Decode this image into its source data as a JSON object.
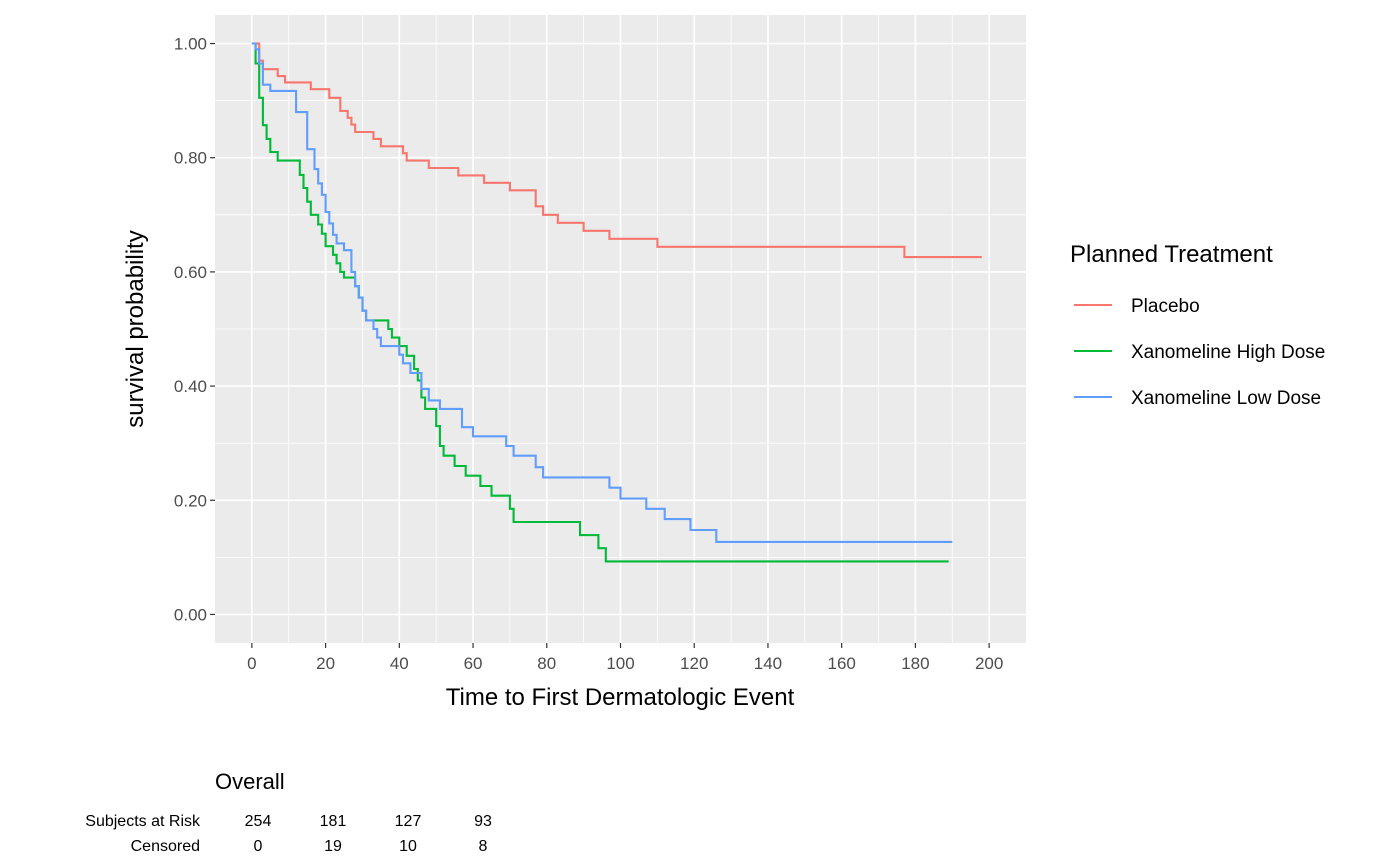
{
  "chart_data": {
    "type": "line",
    "xlabel": "Time to First Dermatologic Event",
    "ylabel": "survival probability",
    "xlim": [
      -10,
      210
    ],
    "ylim": [
      -0.05,
      1.05
    ],
    "x_ticks": [
      0,
      20,
      40,
      60,
      80,
      100,
      120,
      140,
      160,
      180,
      200
    ],
    "x_tick_labels": [
      "0",
      "20",
      "40",
      "60",
      "80",
      "100",
      "120",
      "140",
      "160",
      "180",
      "200"
    ],
    "y_ticks": [
      0,
      0.2,
      0.4,
      0.6,
      0.8,
      1.0
    ],
    "y_tick_labels": [
      "0.00",
      "0.20",
      "0.40",
      "0.60",
      "0.80",
      "1.00"
    ],
    "grid": true,
    "step": true,
    "legend": {
      "title": "Planned Treatment",
      "position": "right"
    },
    "series": [
      {
        "name": "Placebo",
        "color": "#F8766D",
        "points": [
          [
            0,
            1.0
          ],
          [
            2,
            0.97
          ],
          [
            3,
            0.955
          ],
          [
            7,
            0.943
          ],
          [
            9,
            0.932
          ],
          [
            16,
            0.92
          ],
          [
            21,
            0.905
          ],
          [
            24,
            0.882
          ],
          [
            26,
            0.87
          ],
          [
            27,
            0.858
          ],
          [
            28,
            0.845
          ],
          [
            33,
            0.833
          ],
          [
            35,
            0.82
          ],
          [
            41,
            0.808
          ],
          [
            42,
            0.795
          ],
          [
            48,
            0.782
          ],
          [
            56,
            0.769
          ],
          [
            63,
            0.756
          ],
          [
            70,
            0.743
          ],
          [
            77,
            0.715
          ],
          [
            79,
            0.7
          ],
          [
            83,
            0.686
          ],
          [
            90,
            0.672
          ],
          [
            97,
            0.658
          ],
          [
            110,
            0.644
          ],
          [
            177,
            0.626
          ],
          [
            198,
            0.626
          ]
        ]
      },
      {
        "name": "Xanomeline High Dose",
        "color": "#00BA38",
        "points": [
          [
            0,
            1.0
          ],
          [
            1,
            0.965
          ],
          [
            2,
            0.905
          ],
          [
            3,
            0.857
          ],
          [
            4,
            0.833
          ],
          [
            5,
            0.81
          ],
          [
            7,
            0.795
          ],
          [
            13,
            0.77
          ],
          [
            14,
            0.747
          ],
          [
            15,
            0.723
          ],
          [
            16,
            0.7
          ],
          [
            18,
            0.683
          ],
          [
            19,
            0.667
          ],
          [
            20,
            0.645
          ],
          [
            22,
            0.63
          ],
          [
            23,
            0.615
          ],
          [
            24,
            0.6
          ],
          [
            25,
            0.59
          ],
          [
            28,
            0.575
          ],
          [
            29,
            0.555
          ],
          [
            30,
            0.532
          ],
          [
            31,
            0.515
          ],
          [
            37,
            0.5
          ],
          [
            38,
            0.485
          ],
          [
            40,
            0.47
          ],
          [
            42,
            0.453
          ],
          [
            44,
            0.43
          ],
          [
            45,
            0.41
          ],
          [
            46,
            0.38
          ],
          [
            47,
            0.36
          ],
          [
            50,
            0.33
          ],
          [
            51,
            0.295
          ],
          [
            52,
            0.278
          ],
          [
            55,
            0.26
          ],
          [
            58,
            0.243
          ],
          [
            62,
            0.225
          ],
          [
            65,
            0.208
          ],
          [
            70,
            0.185
          ],
          [
            71,
            0.162
          ],
          [
            89,
            0.139
          ],
          [
            94,
            0.116
          ],
          [
            96,
            0.093
          ],
          [
            189,
            0.093
          ]
        ]
      },
      {
        "name": "Xanomeline Low Dose",
        "color": "#619CFF",
        "points": [
          [
            0,
            1.0
          ],
          [
            1,
            0.99
          ],
          [
            2,
            0.965
          ],
          [
            3,
            0.928
          ],
          [
            5,
            0.917
          ],
          [
            12,
            0.88
          ],
          [
            15,
            0.815
          ],
          [
            17,
            0.78
          ],
          [
            18,
            0.755
          ],
          [
            19,
            0.735
          ],
          [
            20,
            0.705
          ],
          [
            21,
            0.685
          ],
          [
            22,
            0.665
          ],
          [
            23,
            0.65
          ],
          [
            25,
            0.638
          ],
          [
            27,
            0.6
          ],
          [
            28,
            0.575
          ],
          [
            29,
            0.555
          ],
          [
            30,
            0.532
          ],
          [
            31,
            0.515
          ],
          [
            33,
            0.5
          ],
          [
            34,
            0.485
          ],
          [
            35,
            0.47
          ],
          [
            40,
            0.455
          ],
          [
            41,
            0.44
          ],
          [
            43,
            0.423
          ],
          [
            46,
            0.395
          ],
          [
            48,
            0.375
          ],
          [
            51,
            0.36
          ],
          [
            57,
            0.328
          ],
          [
            60,
            0.312
          ],
          [
            69,
            0.295
          ],
          [
            71,
            0.278
          ],
          [
            77,
            0.258
          ],
          [
            79,
            0.24
          ],
          [
            97,
            0.222
          ],
          [
            100,
            0.203
          ],
          [
            107,
            0.185
          ],
          [
            112,
            0.167
          ],
          [
            119,
            0.148
          ],
          [
            126,
            0.127
          ],
          [
            190,
            0.127
          ]
        ]
      }
    ],
    "risk_table": {
      "title": "Overall",
      "time_points": [
        0,
        20,
        40,
        60
      ],
      "rows": [
        {
          "label": "Subjects at Risk",
          "values": [
            "254",
            "181",
            "127",
            "93"
          ]
        },
        {
          "label": "Censored",
          "values": [
            "0",
            "19",
            "10",
            "8"
          ]
        }
      ]
    }
  }
}
